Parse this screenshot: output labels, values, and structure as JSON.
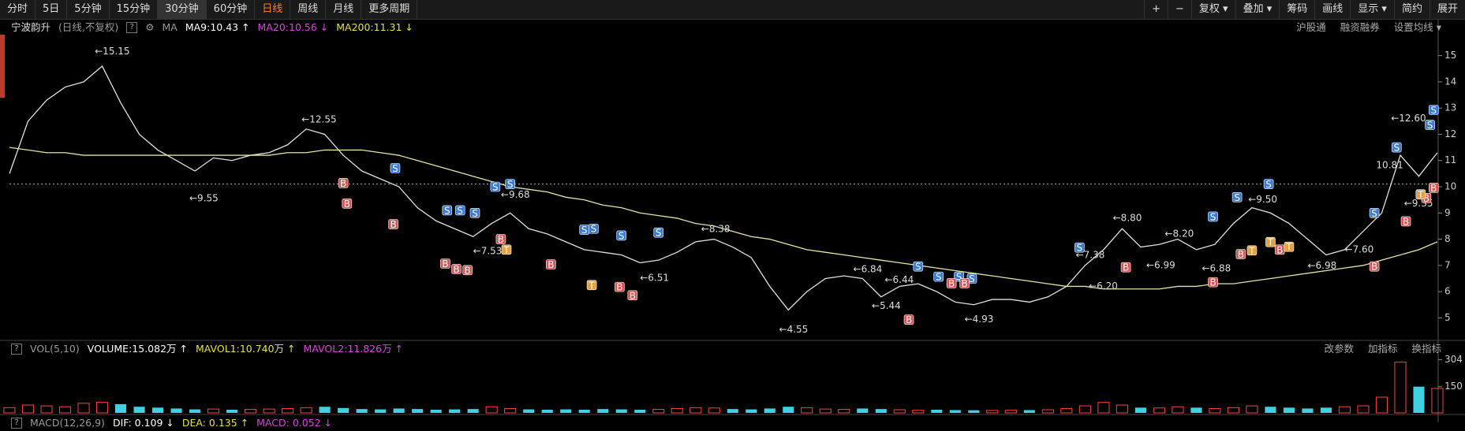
{
  "toolbar": {
    "periods": [
      "分时",
      "5日",
      "5分钟",
      "15分钟",
      "30分钟",
      "60分钟",
      "日线",
      "周线",
      "月线",
      "更多周期"
    ],
    "tools": [
      "+",
      "−",
      "复权 ▾",
      "叠加 ▾",
      "筹码",
      "画线",
      "显示 ▾",
      "简约",
      "展开"
    ]
  },
  "price_header": {
    "stock": "宁波韵升",
    "mode": "(日线,不复权)",
    "ma": "MA",
    "ma_items": [
      {
        "label": "MA9:10.43 ↑",
        "color": "#ffffff"
      },
      {
        "label": "MA20:10.56 ↓",
        "color": "#e040e0"
      },
      {
        "label": "MA200:11.31 ↓",
        "color": "#e8e040"
      }
    ],
    "links": [
      "沪股通",
      "融资融券",
      "设置均线 ▾"
    ]
  },
  "volume_header": {
    "name": "VOL(5,10)",
    "items": [
      {
        "label": "VOLUME:15.082万 ↑",
        "color": "#ffffff"
      },
      {
        "label": "MAVOL1:10.740万 ↑",
        "color": "#e8e040"
      },
      {
        "label": "MAVOL2:11.826万 ↑",
        "color": "#e040e0"
      }
    ],
    "links": [
      "改参数",
      "加指标",
      "换指标"
    ]
  },
  "macd_header": {
    "name": "MACD(12,26,9)",
    "items": [
      {
        "label": "DIF: 0.109 ↓",
        "color": "#ffffff"
      },
      {
        "label": "DEA: 0.135 ↑",
        "color": "#e8e040"
      },
      {
        "label": "MACD: 0.052 ↓",
        "color": "#e040e0"
      }
    ]
  },
  "chart_data": [
    {
      "type": "line",
      "xlim": [
        0,
        77
      ],
      "ylim": [
        4.2,
        15.8
      ],
      "yticks": [
        5,
        6,
        7,
        8,
        9,
        10,
        11,
        12,
        13,
        14,
        15
      ],
      "series": [
        {
          "color": "#e0e0e0",
          "values": [
            10.5,
            12.5,
            13.3,
            13.8,
            14.0,
            14.6,
            13.2,
            12.0,
            11.4,
            11.0,
            10.6,
            11.1,
            11.0,
            11.2,
            11.3,
            11.6,
            12.2,
            12.0,
            11.2,
            10.6,
            10.3,
            10.0,
            9.2,
            8.7,
            8.4,
            8.1,
            8.6,
            9.0,
            8.4,
            8.2,
            7.9,
            7.6,
            7.5,
            7.4,
            7.1,
            7.2,
            7.5,
            7.9,
            8.0,
            7.7,
            7.3,
            6.2,
            5.3,
            6.0,
            6.5,
            6.6,
            6.5,
            5.8,
            6.2,
            6.3,
            6.0,
            5.6,
            5.5,
            5.7,
            5.7,
            5.6,
            5.8,
            6.2,
            7.0,
            7.6,
            8.4,
            7.7,
            7.8,
            8.0,
            7.6,
            7.8,
            8.6,
            9.2,
            9.0,
            8.6,
            8.0,
            7.4,
            7.6,
            8.3,
            9.0,
            11.2,
            10.4,
            11.3
          ]
        },
        {
          "color": "#e6e2a0",
          "values": [
            11.5,
            11.4,
            11.3,
            11.3,
            11.2,
            11.2,
            11.2,
            11.2,
            11.2,
            11.2,
            11.2,
            11.2,
            11.2,
            11.2,
            11.2,
            11.3,
            11.3,
            11.4,
            11.4,
            11.4,
            11.3,
            11.2,
            11.0,
            10.8,
            10.6,
            10.4,
            10.2,
            10.0,
            9.9,
            9.8,
            9.6,
            9.5,
            9.3,
            9.2,
            9.0,
            8.9,
            8.8,
            8.6,
            8.5,
            8.3,
            8.1,
            8.0,
            7.8,
            7.6,
            7.5,
            7.4,
            7.3,
            7.2,
            7.1,
            7.0,
            6.9,
            6.8,
            6.7,
            6.6,
            6.5,
            6.4,
            6.3,
            6.2,
            6.2,
            6.1,
            6.1,
            6.1,
            6.1,
            6.2,
            6.2,
            6.3,
            6.3,
            6.4,
            6.5,
            6.6,
            6.7,
            6.8,
            6.9,
            7.0,
            7.2,
            7.4,
            7.6,
            7.9
          ]
        }
      ],
      "reference_line": 10.1,
      "annotations": [
        {
          "label": "←15.15",
          "x": 4.6,
          "value": 15.15
        },
        {
          "label": "←12.55",
          "x": 15.75,
          "value": 12.55
        },
        {
          "label": "←9.55",
          "x": 9.7,
          "value": 9.55
        },
        {
          "label": "←9.68",
          "x": 26.5,
          "value": 9.68
        },
        {
          "label": "←7.53",
          "x": 25,
          "value": 7.53
        },
        {
          "label": "←8.38",
          "x": 37.3,
          "value": 8.38
        },
        {
          "label": "←6.51",
          "x": 34,
          "value": 6.51
        },
        {
          "label": "←6.84",
          "x": 45.5,
          "value": 6.84
        },
        {
          "label": "←6.44",
          "x": 47.2,
          "value": 6.44
        },
        {
          "label": "←5.44",
          "x": 46.5,
          "value": 5.44
        },
        {
          "label": "←4.55",
          "x": 41.5,
          "value": 4.55
        },
        {
          "label": "←4.93",
          "x": 51.5,
          "value": 4.93
        },
        {
          "label": "←6.20",
          "x": 58.2,
          "value": 6.2
        },
        {
          "label": "←7.38",
          "x": 57.5,
          "value": 7.38
        },
        {
          "label": "←8.80",
          "x": 59.5,
          "value": 8.8
        },
        {
          "label": "←8.20",
          "x": 62.3,
          "value": 8.2
        },
        {
          "label": "←6.99",
          "x": 61.3,
          "value": 6.99
        },
        {
          "label": "←6.88",
          "x": 64.3,
          "value": 6.88
        },
        {
          "label": "←9.50",
          "x": 66.8,
          "value": 9.5
        },
        {
          "label": "←6.98",
          "x": 70,
          "value": 6.98
        },
        {
          "label": "←7.60",
          "x": 72,
          "value": 7.6
        },
        {
          "label": "←12.60",
          "x": 74.5,
          "value": 12.6
        },
        {
          "label": "←9.35",
          "x": 75.2,
          "value": 9.35
        },
        {
          "label": "10.81",
          "x": 73.7,
          "value": 10.81
        }
      ],
      "signals": [
        {
          "label": "S",
          "color": "#3a7bd5",
          "points": [
            [
              20.8,
              10.71
            ],
            [
              23.6,
              9.1
            ],
            [
              24.3,
              9.1
            ],
            [
              25.1,
              9.0
            ],
            [
              26.2,
              10.0
            ],
            [
              27,
              10.1
            ],
            [
              31,
              8.36
            ],
            [
              31.5,
              8.4
            ],
            [
              33,
              8.14
            ],
            [
              35,
              8.25
            ],
            [
              49,
              6.96
            ],
            [
              50.1,
              6.57
            ],
            [
              51.2,
              6.57
            ],
            [
              51.9,
              6.5
            ],
            [
              57.7,
              7.68
            ],
            [
              64.9,
              8.86
            ],
            [
              66.2,
              9.6
            ],
            [
              67.9,
              10.1
            ],
            [
              73.6,
              9.0
            ],
            [
              74.8,
              11.5
            ],
            [
              76.6,
              12.36
            ],
            [
              76.8,
              12.93
            ]
          ]
        },
        {
          "label": "B",
          "color": "#d9534f",
          "points": [
            [
              18,
              10.14
            ],
            [
              18.2,
              9.36
            ],
            [
              20.7,
              8.57
            ],
            [
              23.5,
              7.07
            ],
            [
              24.1,
              6.86
            ],
            [
              24.7,
              6.82
            ],
            [
              26.5,
              8.0
            ],
            [
              29.2,
              7.04
            ],
            [
              32.9,
              6.18
            ],
            [
              33.6,
              5.86
            ],
            [
              48.5,
              4.93
            ],
            [
              50.8,
              6.32
            ],
            [
              51.5,
              6.32
            ],
            [
              60.2,
              6.93
            ],
            [
              64.9,
              6.36
            ],
            [
              66.4,
              7.43
            ],
            [
              68.5,
              7.6
            ],
            [
              73.6,
              6.96
            ],
            [
              75.3,
              8.68
            ],
            [
              76.4,
              9.57
            ],
            [
              76.8,
              9.96
            ]
          ]
        },
        {
          "label": "T",
          "color": "#e8a03c",
          "points": [
            [
              26.8,
              7.6
            ],
            [
              31.4,
              6.25
            ],
            [
              67,
              7.57
            ],
            [
              68,
              7.89
            ],
            [
              69,
              7.71
            ],
            [
              76.1,
              9.71
            ]
          ]
        }
      ]
    },
    {
      "type": "bar",
      "xlim": [
        0,
        77
      ],
      "ylim": [
        0,
        320
      ],
      "yticks": [
        150,
        304
      ],
      "up_color": "#ff4040",
      "down_color": "#40d0e0",
      "values": [
        30,
        45,
        40,
        35,
        55,
        60,
        50,
        35,
        30,
        25,
        20,
        22,
        18,
        20,
        22,
        25,
        30,
        35,
        28,
        22,
        20,
        25,
        22,
        18,
        20,
        22,
        35,
        25,
        20,
        18,
        20,
        18,
        22,
        20,
        18,
        20,
        25,
        30,
        28,
        22,
        20,
        25,
        35,
        30,
        22,
        20,
        25,
        22,
        18,
        15,
        18,
        16,
        15,
        14,
        15,
        16,
        18,
        25,
        40,
        60,
        45,
        30,
        28,
        35,
        30,
        25,
        30,
        40,
        35,
        30,
        25,
        30,
        35,
        40,
        90,
        290,
        150,
        140
      ]
    }
  ]
}
